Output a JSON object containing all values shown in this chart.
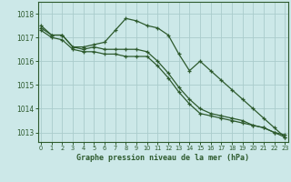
{
  "title": "Graphe pression niveau de la mer (hPa)",
  "bg_color": "#cce8e8",
  "grid_color": "#aacccc",
  "line_color": "#2d5a2d",
  "xlim": [
    -0.3,
    23.3
  ],
  "ylim": [
    1012.6,
    1018.5
  ],
  "yticks": [
    1013,
    1014,
    1015,
    1016,
    1017,
    1018
  ],
  "xticks": [
    0,
    1,
    2,
    3,
    4,
    5,
    6,
    7,
    8,
    9,
    10,
    11,
    12,
    13,
    14,
    15,
    16,
    17,
    18,
    19,
    20,
    21,
    22,
    23
  ],
  "series": [
    [
      1017.4,
      1017.1,
      1017.1,
      1016.6,
      1016.6,
      1016.7,
      1016.8,
      1017.3,
      1017.8,
      1017.7,
      1017.5,
      1017.4,
      1017.1,
      1016.3,
      1015.6,
      1016.0,
      1015.6,
      1015.2,
      1014.8,
      1014.4,
      1014.0,
      1013.6,
      1013.2,
      1012.8
    ],
    [
      1017.5,
      1017.1,
      1017.1,
      1016.6,
      1016.5,
      1016.6,
      1016.5,
      1016.5,
      1016.5,
      1016.5,
      1016.4,
      1016.0,
      1015.5,
      1014.9,
      1014.4,
      1014.0,
      1013.8,
      1013.7,
      1013.6,
      1013.5,
      1013.3,
      1013.2,
      1013.0,
      1012.8
    ],
    [
      1017.3,
      1017.0,
      1016.9,
      1016.5,
      1016.4,
      1016.4,
      1016.3,
      1016.3,
      1016.2,
      1016.2,
      1016.2,
      1015.8,
      1015.3,
      1014.7,
      1014.2,
      1013.8,
      1013.7,
      1013.6,
      1013.5,
      1013.4,
      1013.3,
      1013.2,
      1013.0,
      1012.9
    ]
  ]
}
